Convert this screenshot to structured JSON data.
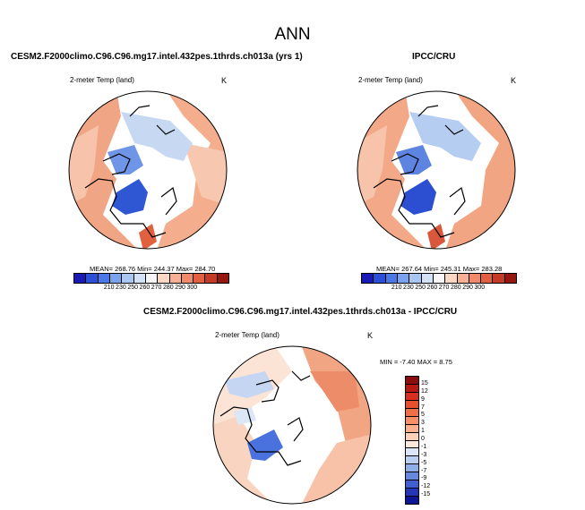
{
  "title": "ANN",
  "panels": {
    "model": {
      "title": "CESM2.F2000climo.C96.C96.mg17.intel.432pes.1thrds.ch013a (yrs 1)",
      "variable": "2-meter Temp (land)",
      "units": "K",
      "stats": "MEAN= 268.76   Min= 244.37   Max= 284.70"
    },
    "obs": {
      "title": "IPCC/CRU",
      "variable": "2-meter Temp (land)",
      "units": "K",
      "stats": "MEAN= 267.64   Min= 245.31   Max= 283.28"
    },
    "diff": {
      "title": "CESM2.F2000climo.C96.C96.mg17.intel.432pes.1thrds.ch013a - IPCC/CRU",
      "variable": "2-meter Temp (land)",
      "units": "K",
      "stats": "MIN =  -7.40  MAX =   8.75"
    }
  },
  "colorbars": {
    "abs": {
      "labels": [
        "210",
        "230",
        "250",
        "260",
        "270",
        "280",
        "290",
        "300"
      ],
      "colors": [
        "#1a1ab4",
        "#2b4fd6",
        "#4a78e6",
        "#7aa3ef",
        "#a9c6f3",
        "#d3e2f6",
        "#f7f7f7",
        "#fbd7c4",
        "#f7b093",
        "#f08a69",
        "#e0603f",
        "#c43c25",
        "#96170f"
      ]
    },
    "diff": {
      "labels": [
        "15",
        "12",
        "9",
        "7",
        "5",
        "3",
        "1",
        "0",
        "-1",
        "-3",
        "-5",
        "-7",
        "-9",
        "-12",
        "-15"
      ],
      "colors": [
        "#8b0d0d",
        "#b71a12",
        "#d7301f",
        "#e6502f",
        "#ef6f48",
        "#f58f66",
        "#f9b08c",
        "#fbd0b8",
        "#fce9dc",
        "#dbe7f6",
        "#b8cff1",
        "#8eaeea",
        "#6689df",
        "#3f5fd0",
        "#2236b8",
        "#0c1694"
      ]
    }
  }
}
